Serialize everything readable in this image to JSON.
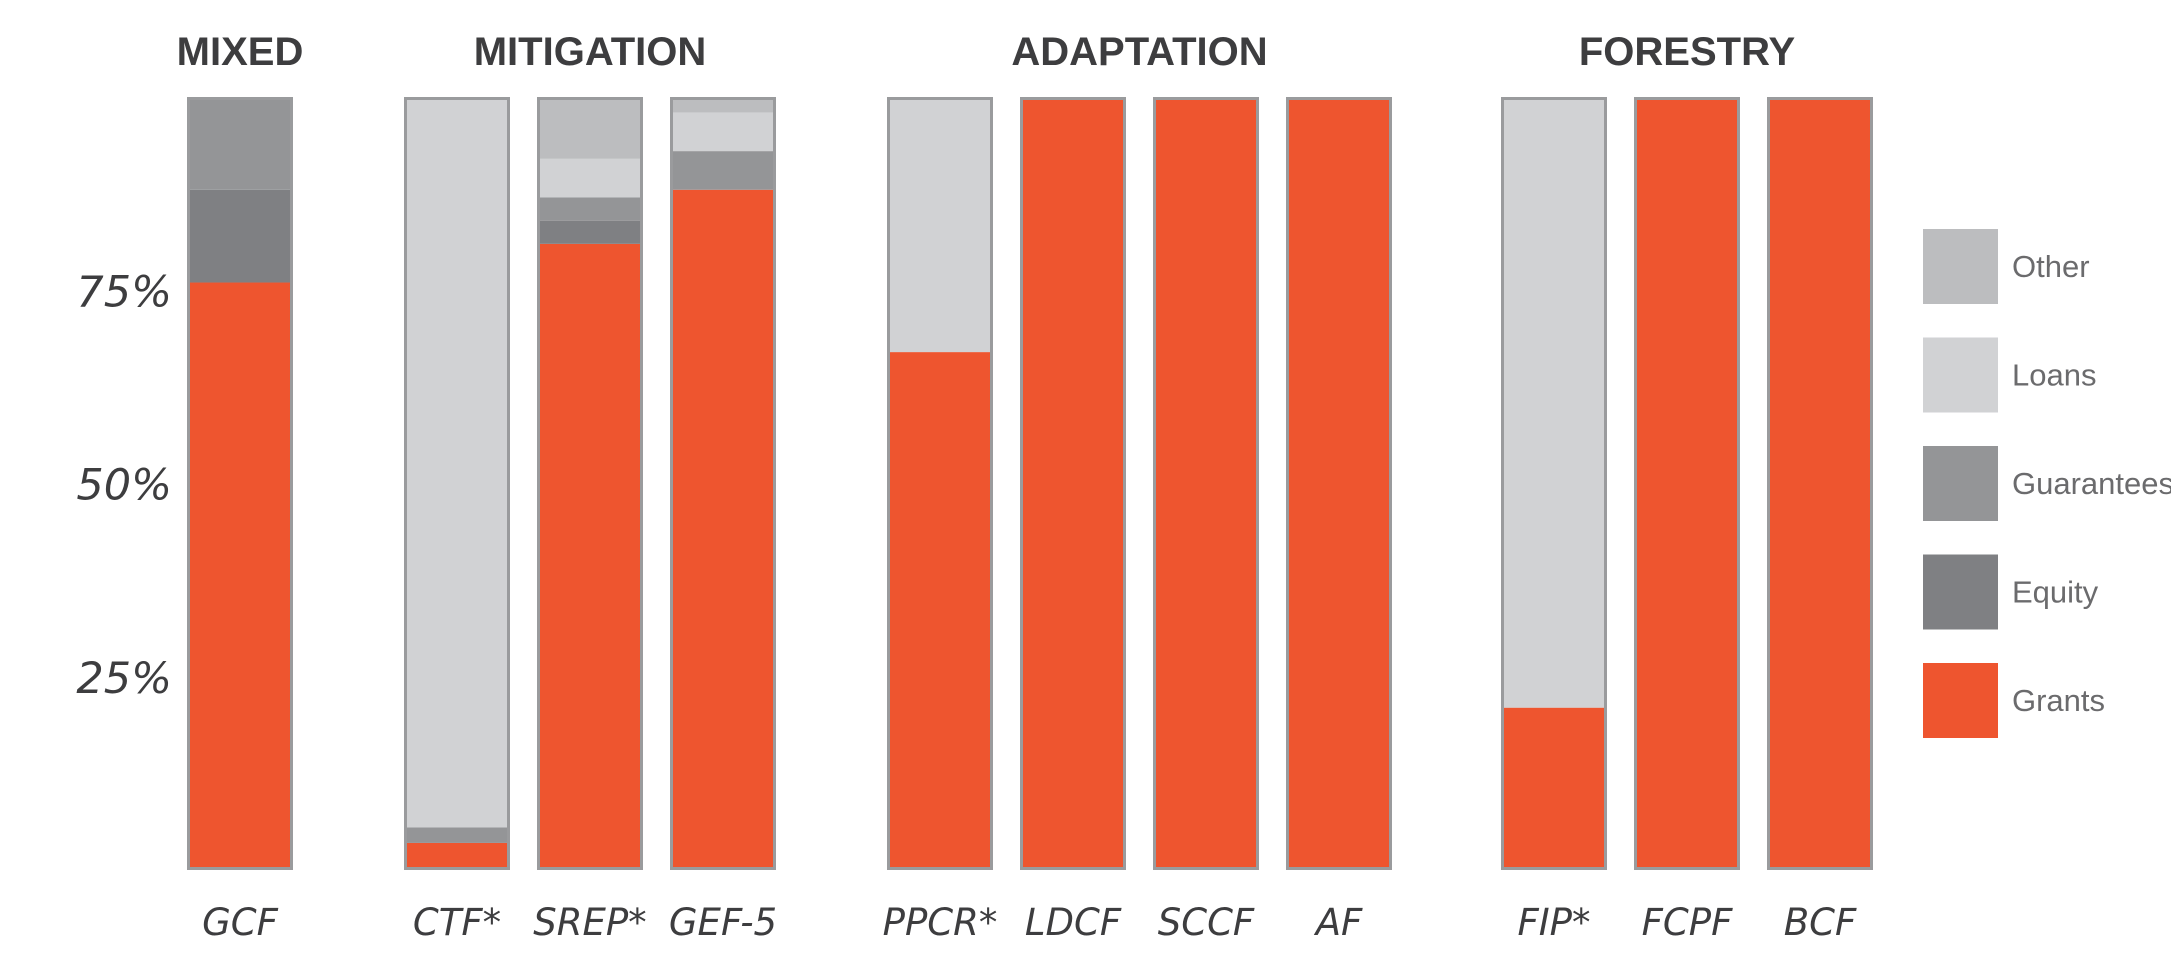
{
  "chart_data": {
    "type": "bar",
    "stacked": true,
    "normalized": true,
    "yaxis_ticks": [
      "25%",
      "50%",
      "75%"
    ],
    "ylim": [
      0,
      100
    ],
    "grid": "dotted horizontal at 25, 50, 75",
    "legend_position": "right",
    "groups": [
      {
        "title": "MIXED",
        "categories": [
          "GCF"
        ]
      },
      {
        "title": "MITIGATION",
        "categories": [
          "CTF*",
          "SREP*",
          "GEF-5"
        ]
      },
      {
        "title": "ADAPTATION",
        "categories": [
          "PPCR*",
          "LDCF",
          "SCCF",
          "AF"
        ]
      },
      {
        "title": "FORESTRY",
        "categories": [
          "FIP*",
          "FCPF",
          "BCF"
        ]
      }
    ],
    "categories": [
      "GCF",
      "CTF*",
      "SREP*",
      "GEF-5",
      "PPCR*",
      "LDCF",
      "SCCF",
      "AF",
      "FIP*",
      "FCPF",
      "BCF"
    ],
    "series": [
      {
        "name": "Grants",
        "color": "#ee552f",
        "values": [
          76,
          3.5,
          81,
          88,
          67,
          100,
          100,
          100,
          21,
          100,
          100
        ]
      },
      {
        "name": "Equity",
        "color": "#7f8083",
        "values": [
          12,
          0,
          3,
          0,
          0,
          0,
          0,
          0,
          0,
          0,
          0
        ]
      },
      {
        "name": "Guarantees",
        "color": "#949597",
        "values": [
          12,
          2,
          3,
          5,
          0,
          0,
          0,
          0,
          0,
          0,
          0
        ]
      },
      {
        "name": "Loans",
        "color": "#d1d2d4",
        "values": [
          0,
          94.5,
          5,
          5,
          33,
          0,
          0,
          0,
          79,
          0,
          0
        ]
      },
      {
        "name": "Other",
        "color": "#bcbdbf",
        "values": [
          0,
          0,
          8,
          2,
          0,
          0,
          0,
          0,
          0,
          0,
          0
        ]
      }
    ],
    "legend_order": [
      "Other",
      "Loans",
      "Guarantees",
      "Equity",
      "Grants"
    ]
  }
}
